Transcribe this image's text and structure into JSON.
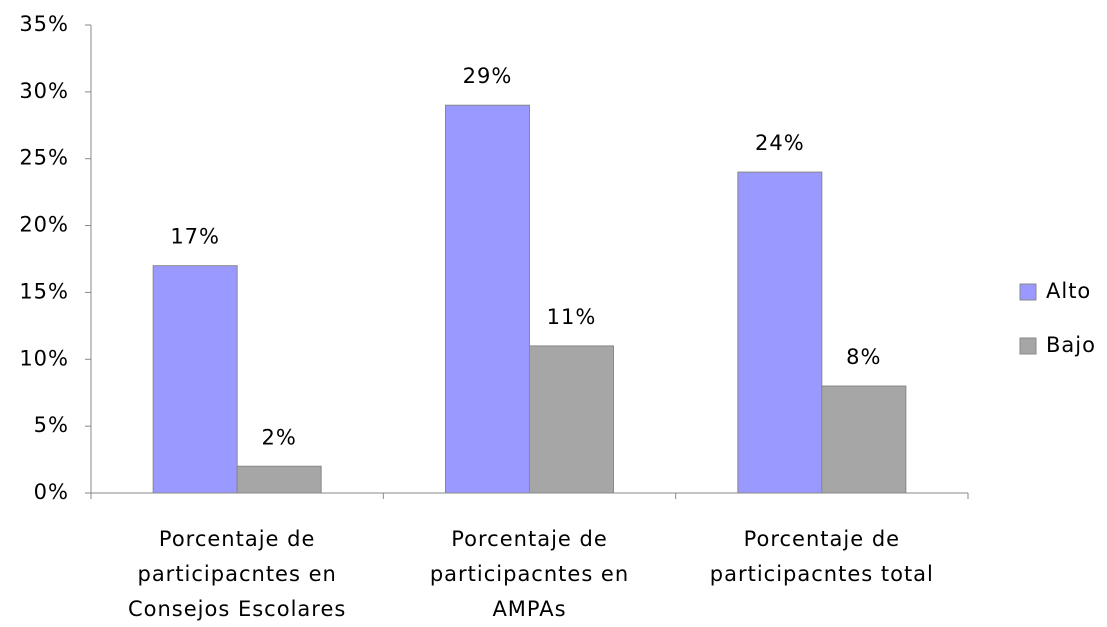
{
  "chart_data": {
    "type": "bar",
    "categories": [
      "Porcentaje de participacntes en Consejos Escolares",
      "Porcentaje de participacntes en AMPAs",
      "Porcentaje de participacntes total"
    ],
    "series": [
      {
        "name": "Alto",
        "color": "#9999ff",
        "values": [
          17,
          29,
          24
        ],
        "value_labels": [
          "17%",
          "29%",
          "24%"
        ]
      },
      {
        "name": "Bajo",
        "color": "#a6a6a6",
        "values": [
          2,
          11,
          8
        ],
        "value_labels": [
          "2%",
          "11%",
          "8%"
        ]
      }
    ],
    "ylim": [
      0,
      35
    ],
    "yticks": [
      {
        "value": 0,
        "label": "0%"
      },
      {
        "value": 5,
        "label": "5%"
      },
      {
        "value": 10,
        "label": "10%"
      },
      {
        "value": 15,
        "label": "15%"
      },
      {
        "value": 20,
        "label": "20%"
      },
      {
        "value": 25,
        "label": "25%"
      },
      {
        "value": 30,
        "label": "30%"
      },
      {
        "value": 35,
        "label": "35%"
      }
    ],
    "legend": "right"
  }
}
